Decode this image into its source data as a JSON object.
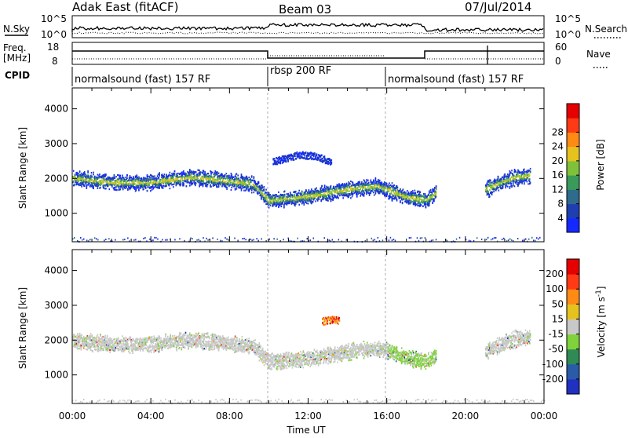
{
  "header": {
    "title": "Adak East (fitACF)",
    "beam": "Beam 03",
    "date": "07/Jul/2014"
  },
  "top_panels": {
    "nsky_label": "N.Sky",
    "nsearch_label": "N.Search",
    "nsky_ticks": [
      "10^5",
      "10^0"
    ],
    "freq_label_1": "Freq.",
    "freq_label_2": "[MHz]",
    "freq_ticks": [
      "18",
      "8"
    ],
    "nave_label": "Nave",
    "nave_ticks": [
      "60",
      "0"
    ],
    "cpid_label": "CPID",
    "cpid_segments": [
      {
        "name": "normalsound (fast) 157 RF",
        "start": 0,
        "end": 10
      },
      {
        "name": "rbsp 200 RF",
        "start": 10,
        "end": 16
      },
      {
        "name": "normalsound (fast) 157 RF",
        "start": 16,
        "end": 24
      }
    ]
  },
  "chart_data": [
    {
      "type": "heatmap",
      "title": "",
      "xlabel": "",
      "ylabel": "Slant Range [km]",
      "xlim": [
        0,
        24
      ],
      "ylim": [
        180,
        4600
      ],
      "y_ticks": [
        1000,
        2000,
        3000,
        4000
      ],
      "colorbar": {
        "label": "Power [dB]",
        "ticks": [
          "4",
          "8",
          "12",
          "16",
          "20",
          "24",
          "28"
        ],
        "colors": [
          "#1428ff",
          "#1f3fb0",
          "#2e6b8c",
          "#3a9a5a",
          "#7fc23a",
          "#e6c21f",
          "#ff8a14",
          "#ff3a14",
          "#e60000"
        ]
      },
      "series": [
        {
          "points": [
            [
              0.0,
              2030
            ],
            [
              2.0,
              1900
            ],
            [
              4.0,
              1900
            ],
            [
              6.0,
              2050
            ],
            [
              7.5,
              1980
            ],
            [
              9.2,
              1850
            ],
            [
              10.0,
              1380
            ],
            [
              12.0,
              1500
            ],
            [
              14.0,
              1700
            ],
            [
              15.5,
              1800
            ],
            [
              16.2,
              1650
            ],
            [
              17.0,
              1480
            ],
            [
              18.0,
              1400
            ],
            [
              18.5,
              1600
            ]
          ]
        },
        {
          "points": [
            [
              21.0,
              1700
            ],
            [
              21.8,
              1900
            ],
            [
              22.5,
              2050
            ],
            [
              23.3,
              2100
            ]
          ]
        }
      ],
      "notes_layers": [
        {
          "points": [
            [
              10.2,
              2500
            ],
            [
              11.5,
              2700
            ],
            [
              12.5,
              2650
            ],
            [
              13.2,
              2450
            ]
          ]
        }
      ]
    },
    {
      "type": "heatmap",
      "title": "",
      "xlabel": "Time UT",
      "ylabel": "Slant Range [km]",
      "xlim": [
        0,
        24
      ],
      "ylim": [
        180,
        4600
      ],
      "y_ticks": [
        1000,
        2000,
        3000,
        4000
      ],
      "x_ticks": [
        "00:00",
        "04:00",
        "08:00",
        "12:00",
        "16:00",
        "20:00",
        "00:00"
      ],
      "colorbar": {
        "label": "Velocity [m s^-1]",
        "ticks": [
          "200",
          "100",
          "50",
          "15",
          "-15",
          "-50",
          "-100",
          "-200"
        ],
        "colors": [
          "#2030c0",
          "#2a5aa8",
          "#2f8a55",
          "#7fd23a",
          "#c8c8c8",
          "#e6c21f",
          "#ff8a14",
          "#ff3a14",
          "#e60000"
        ]
      },
      "series": [
        {
          "points": [
            [
              0.0,
              2000
            ],
            [
              2.0,
              1900
            ],
            [
              4.0,
              1900
            ],
            [
              6.0,
              2020
            ],
            [
              7.5,
              1950
            ],
            [
              9.2,
              1850
            ],
            [
              10.0,
              1400
            ],
            [
              12.0,
              1480
            ],
            [
              14.0,
              1680
            ],
            [
              15.5,
              1780
            ],
            [
              16.2,
              1680
            ],
            [
              17.0,
              1500
            ],
            [
              18.0,
              1420
            ],
            [
              18.5,
              1580
            ]
          ]
        },
        {
          "points": [
            [
              21.0,
              1700
            ],
            [
              21.8,
              1900
            ],
            [
              22.5,
              2050
            ],
            [
              23.3,
              2100
            ]
          ]
        }
      ],
      "notes_layers": [
        {
          "points": [
            [
              12.7,
              2550
            ],
            [
              13.0,
              2600
            ],
            [
              13.3,
              2620
            ],
            [
              13.6,
              2560
            ]
          ]
        }
      ]
    }
  ]
}
